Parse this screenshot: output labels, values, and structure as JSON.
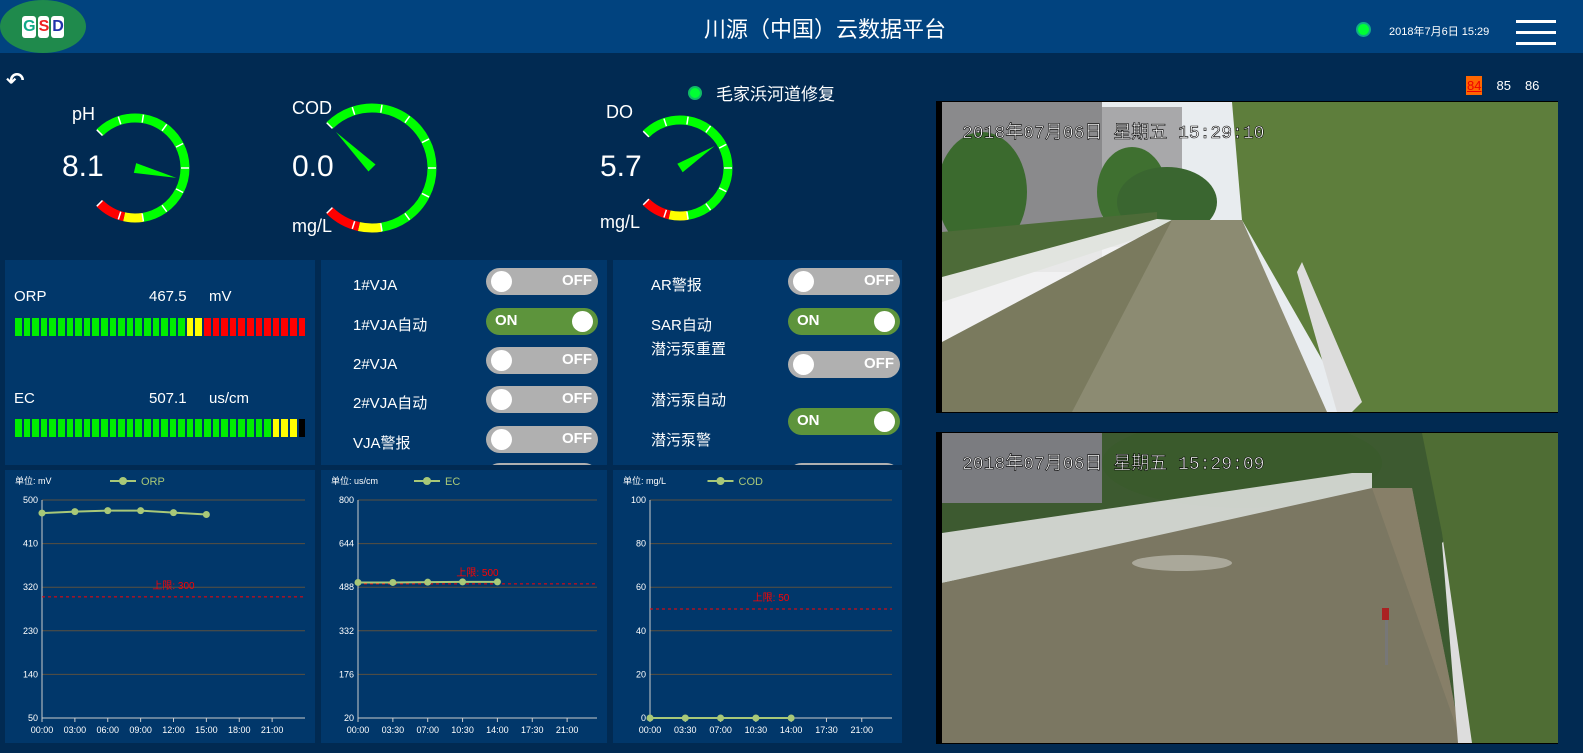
{
  "header": {
    "logo": "GSD",
    "title": "川源（中国）云数据平台",
    "datetime": "2018年7月6日 15:29",
    "status_color": "#00ff33"
  },
  "site": {
    "name": "毛家浜河道修复"
  },
  "pages": {
    "items": [
      "84",
      "85",
      "86"
    ],
    "active": "84"
  },
  "gauges": [
    {
      "label": "pH",
      "value": "8.1",
      "unit": "",
      "needle": 0.55
    },
    {
      "label": "COD",
      "value": "0.0",
      "unit": "mg/L",
      "needle": 0.0
    },
    {
      "label": "DO",
      "value": "5.7",
      "unit": "mg/L",
      "needle": 0.38
    }
  ],
  "meters": [
    {
      "label": "ORP",
      "value": "467.5",
      "unit": "mV",
      "segments": {
        "green": 20,
        "yellow": 2,
        "red": 12,
        "black": 0
      }
    },
    {
      "label": "EC",
      "value": "507.1",
      "unit": "us/cm",
      "segments": {
        "green": 30,
        "yellow": 3,
        "red": 0,
        "black": 1
      }
    }
  ],
  "switches_left": [
    {
      "label": "1#VJA",
      "state": "OFF"
    },
    {
      "label": "1#VJA自动",
      "state": "ON"
    },
    {
      "label": "2#VJA",
      "state": "OFF"
    },
    {
      "label": "2#VJA自动",
      "state": "OFF"
    },
    {
      "label": "VJA警报",
      "state": "OFF"
    }
  ],
  "switches_right": [
    {
      "label": "AR警报",
      "state": "OFF"
    },
    {
      "label": "SAR自动",
      "state": "ON"
    },
    {
      "label": "潜污泵重置",
      "state": "OFF"
    },
    {
      "label": "潜污泵自动",
      "state": "ON"
    },
    {
      "label": "潜污泵警",
      "state": "OFF"
    }
  ],
  "colors": {
    "line": "#a8c878",
    "limit": "#ff0000",
    "grid": "#5a5040"
  },
  "chart_data": [
    {
      "type": "line",
      "unit_label": "单位: mV",
      "series": [
        {
          "name": "ORP",
          "x": [
            "00:00",
            "03:00",
            "06:00",
            "09:00",
            "12:00",
            "15:00"
          ],
          "y": [
            473,
            476,
            478,
            478,
            474,
            470
          ]
        }
      ],
      "xticks": [
        "00:00",
        "03:00",
        "06:00",
        "09:00",
        "12:00",
        "15:00",
        "18:00",
        "21:00"
      ],
      "yticks": [
        50,
        140,
        230,
        320,
        410,
        500
      ],
      "ylim": [
        50,
        500
      ],
      "limit": {
        "value": 300,
        "label": "上限: 300"
      }
    },
    {
      "type": "line",
      "unit_label": "单位: us/cm",
      "series": [
        {
          "name": "EC",
          "x": [
            "00:00",
            "03:30",
            "07:00",
            "10:30",
            "14:00"
          ],
          "y": [
            505,
            505,
            506,
            507,
            507
          ]
        }
      ],
      "xticks": [
        "00:00",
        "03:30",
        "07:00",
        "10:30",
        "14:00",
        "17:30",
        "21:00"
      ],
      "yticks": [
        20,
        176,
        332,
        488,
        644,
        800
      ],
      "ylim": [
        20,
        800
      ],
      "limit": {
        "value": 500,
        "label": "上限: 500"
      }
    },
    {
      "type": "line",
      "unit_label": "单位: mg/L",
      "series": [
        {
          "name": "COD",
          "x": [
            "00:00",
            "03:30",
            "07:00",
            "10:30",
            "14:00"
          ],
          "y": [
            0,
            0,
            0,
            0,
            0
          ]
        }
      ],
      "xticks": [
        "00:00",
        "03:30",
        "07:00",
        "10:30",
        "14:00",
        "17:30",
        "21:00"
      ],
      "yticks": [
        0,
        20,
        40,
        60,
        80,
        100
      ],
      "ylim": [
        0,
        100
      ],
      "limit": {
        "value": 50,
        "label": "上限: 50"
      }
    }
  ],
  "cameras": [
    {
      "overlay": "2018年07月06日  星期五  15:29:10"
    },
    {
      "overlay": "2018年07月06日  星期五  15:29:09"
    }
  ]
}
